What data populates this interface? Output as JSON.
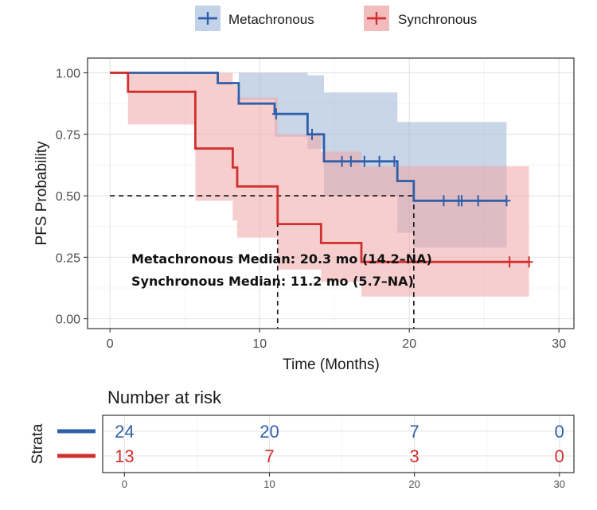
{
  "chart_data": [
    {
      "type": "line",
      "subtype": "kaplan-meier",
      "title": "",
      "xlabel": "Time (Months)",
      "ylabel": "PFS Probability",
      "xlim": [
        -1.5,
        31
      ],
      "ylim": [
        -0.04,
        1.06
      ],
      "x_ticks": [
        "0",
        "10",
        "20",
        "30"
      ],
      "y_ticks": [
        "0.00",
        "0.25",
        "0.50",
        "0.75",
        "1.00"
      ],
      "grid": true,
      "legend_position": "top",
      "legend": [
        {
          "name": "Metachronous",
          "color": "#2f5fa8"
        },
        {
          "name": "Synchronous",
          "color": "#d22f2f"
        }
      ],
      "series": [
        {
          "name": "Metachronous",
          "color": "#2f5fa8",
          "ci_color": "#9cb5d6",
          "curve": [
            [
              0,
              1.0
            ],
            [
              7.2,
              1.0
            ],
            [
              7.2,
              0.958
            ],
            [
              8.6,
              0.958
            ],
            [
              8.6,
              0.875
            ],
            [
              11.0,
              0.875
            ],
            [
              11.0,
              0.833
            ],
            [
              13.2,
              0.833
            ],
            [
              13.2,
              0.75
            ],
            [
              14.3,
              0.75
            ],
            [
              14.3,
              0.64
            ],
            [
              19.2,
              0.64
            ],
            [
              19.2,
              0.56
            ],
            [
              20.3,
              0.56
            ],
            [
              20.3,
              0.48
            ],
            [
              26.5,
              0.48
            ]
          ],
          "ci": [
            [
              0,
              1.0,
              1.0
            ],
            [
              7.2,
              1.0,
              1.0
            ],
            [
              8.6,
              0.89,
              1.0
            ],
            [
              11.0,
              0.74,
              1.0
            ],
            [
              13.2,
              0.69,
              0.99
            ],
            [
              14.3,
              0.56,
              0.98
            ],
            [
              14.3,
              0.5,
              0.92
            ],
            [
              19.2,
              0.41,
              0.82
            ],
            [
              19.2,
              0.35,
              0.8
            ],
            [
              20.3,
              0.35,
              0.8
            ],
            [
              20.3,
              0.29,
              0.8
            ],
            [
              26.5,
              0.29,
              0.8
            ]
          ],
          "censor_times": [
            11.1,
            13.5,
            15.5,
            16.1,
            17.0,
            18.0,
            19.0,
            22.3,
            23.3,
            23.5,
            24.6,
            26.5
          ]
        },
        {
          "name": "Synchronous",
          "color": "#d22f2f",
          "ci_color": "#f0a5a5",
          "curve": [
            [
              0,
              1.0
            ],
            [
              1.2,
              1.0
            ],
            [
              1.2,
              0.923
            ],
            [
              5.7,
              0.923
            ],
            [
              5.7,
              0.692
            ],
            [
              8.2,
              0.692
            ],
            [
              8.2,
              0.615
            ],
            [
              8.5,
              0.615
            ],
            [
              8.5,
              0.538
            ],
            [
              11.2,
              0.538
            ],
            [
              11.2,
              0.385
            ],
            [
              14.1,
              0.385
            ],
            [
              14.1,
              0.308
            ],
            [
              16.8,
              0.308
            ],
            [
              16.8,
              0.231
            ],
            [
              28.0,
              0.231
            ]
          ],
          "ci": [
            [
              0,
              1.0,
              1.0
            ],
            [
              1.2,
              0.79,
              1.0
            ],
            [
              5.7,
              0.48,
              1.0
            ],
            [
              8.2,
              0.4,
              0.95
            ],
            [
              8.5,
              0.33,
              0.9
            ],
            [
              11.2,
              0.2,
              0.75
            ],
            [
              14.1,
              0.15,
              0.68
            ],
            [
              16.8,
              0.09,
              0.62
            ],
            [
              28.0,
              0.09,
              0.62
            ]
          ],
          "censor_times": [
            26.7,
            28.0
          ]
        }
      ],
      "median_lines": [
        {
          "x": 11.2,
          "y": 0.5
        },
        {
          "x": 20.3,
          "y": 0.5
        }
      ],
      "annotations": [
        "Metachronous Median: 20.3 mo (14.2–NA)",
        "Synchronous Median: 11.2 mo (5.7–NA)"
      ]
    },
    {
      "type": "table",
      "title": "Number at risk",
      "ylabel": "Strata",
      "time_points": [
        "0",
        "10",
        "20",
        "30"
      ],
      "rows": [
        {
          "color": "#2f5fa8",
          "values": [
            "24",
            "20",
            "7",
            "0"
          ]
        },
        {
          "color": "#d22f2f",
          "values": [
            "13",
            "7",
            "3",
            "0"
          ]
        }
      ]
    }
  ]
}
